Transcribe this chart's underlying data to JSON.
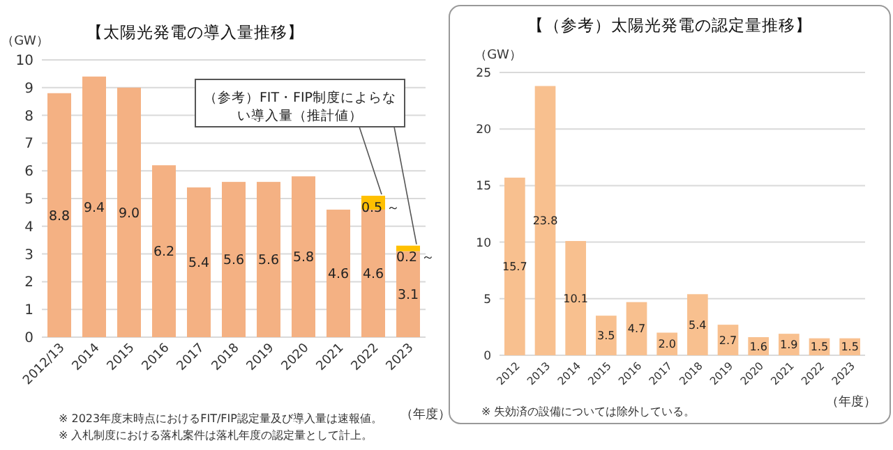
{
  "chart_data": [
    {
      "type": "bar",
      "stacked": true,
      "title": "【太陽光発電の導入量推移】",
      "ylabel": "（GW）",
      "xlabel": "（年度）",
      "categories": [
        "2012/13",
        "2014",
        "2015",
        "2016",
        "2017",
        "2018",
        "2019",
        "2020",
        "2021",
        "2022",
        "2023"
      ],
      "series": [
        {
          "color": "#f4b183",
          "values": [
            8.8,
            9.4,
            9.0,
            6.2,
            5.4,
            5.6,
            5.6,
            5.8,
            4.6,
            4.6,
            3.1
          ],
          "value_labels": [
            "8.8",
            "9.4",
            "9.0",
            "6.2",
            "5.4",
            "5.6",
            "5.6",
            "5.8",
            "4.6",
            "4.6",
            "3.1"
          ]
        },
        {
          "name": "（参考）FIT・FIP制度によらない導入量（推計値）",
          "color": "#ffc000",
          "values": [
            null,
            null,
            null,
            null,
            null,
            null,
            null,
            null,
            null,
            0.5,
            0.2
          ],
          "value_labels": [
            null,
            null,
            null,
            null,
            null,
            null,
            null,
            null,
            null,
            "0.5 ～",
            "0.2 ～"
          ]
        }
      ],
      "ylim": [
        0,
        10
      ],
      "yticks": [
        0,
        1,
        2,
        3,
        4,
        5,
        6,
        7,
        8,
        9,
        10
      ],
      "grid": "y",
      "legend": false,
      "annotations": [
        "※ 2023年度末時点におけるFIT/FIP認定量及び導入量は速報値。",
        "※ 入札制度における落札案件は落札年度の認定量として計上。"
      ]
    },
    {
      "type": "bar",
      "title": "【（参考）太陽光発電の認定量推移】",
      "ylabel": "（GW）",
      "xlabel": "（年度）",
      "categories": [
        "2012",
        "2013",
        "2014",
        "2015",
        "2016",
        "2017",
        "2018",
        "2019",
        "2020",
        "2021",
        "2022",
        "2023"
      ],
      "values": [
        15.7,
        23.8,
        10.1,
        3.5,
        4.7,
        2.0,
        5.4,
        2.7,
        1.6,
        1.9,
        1.5,
        1.5
      ],
      "color": "#f8c08f",
      "value_labels": [
        "15.7",
        "23.8",
        "10.1",
        "3.5",
        "4.7",
        "2.0",
        "5.4",
        "2.7",
        "1.6",
        "1.9",
        "1.5",
        "1.5"
      ],
      "ylim": [
        0,
        25
      ],
      "yticks": [
        0,
        5,
        10,
        15,
        20,
        25
      ],
      "grid": "y",
      "legend": false,
      "annotations": [
        "※ 失効済の設備については除外している。"
      ]
    }
  ]
}
